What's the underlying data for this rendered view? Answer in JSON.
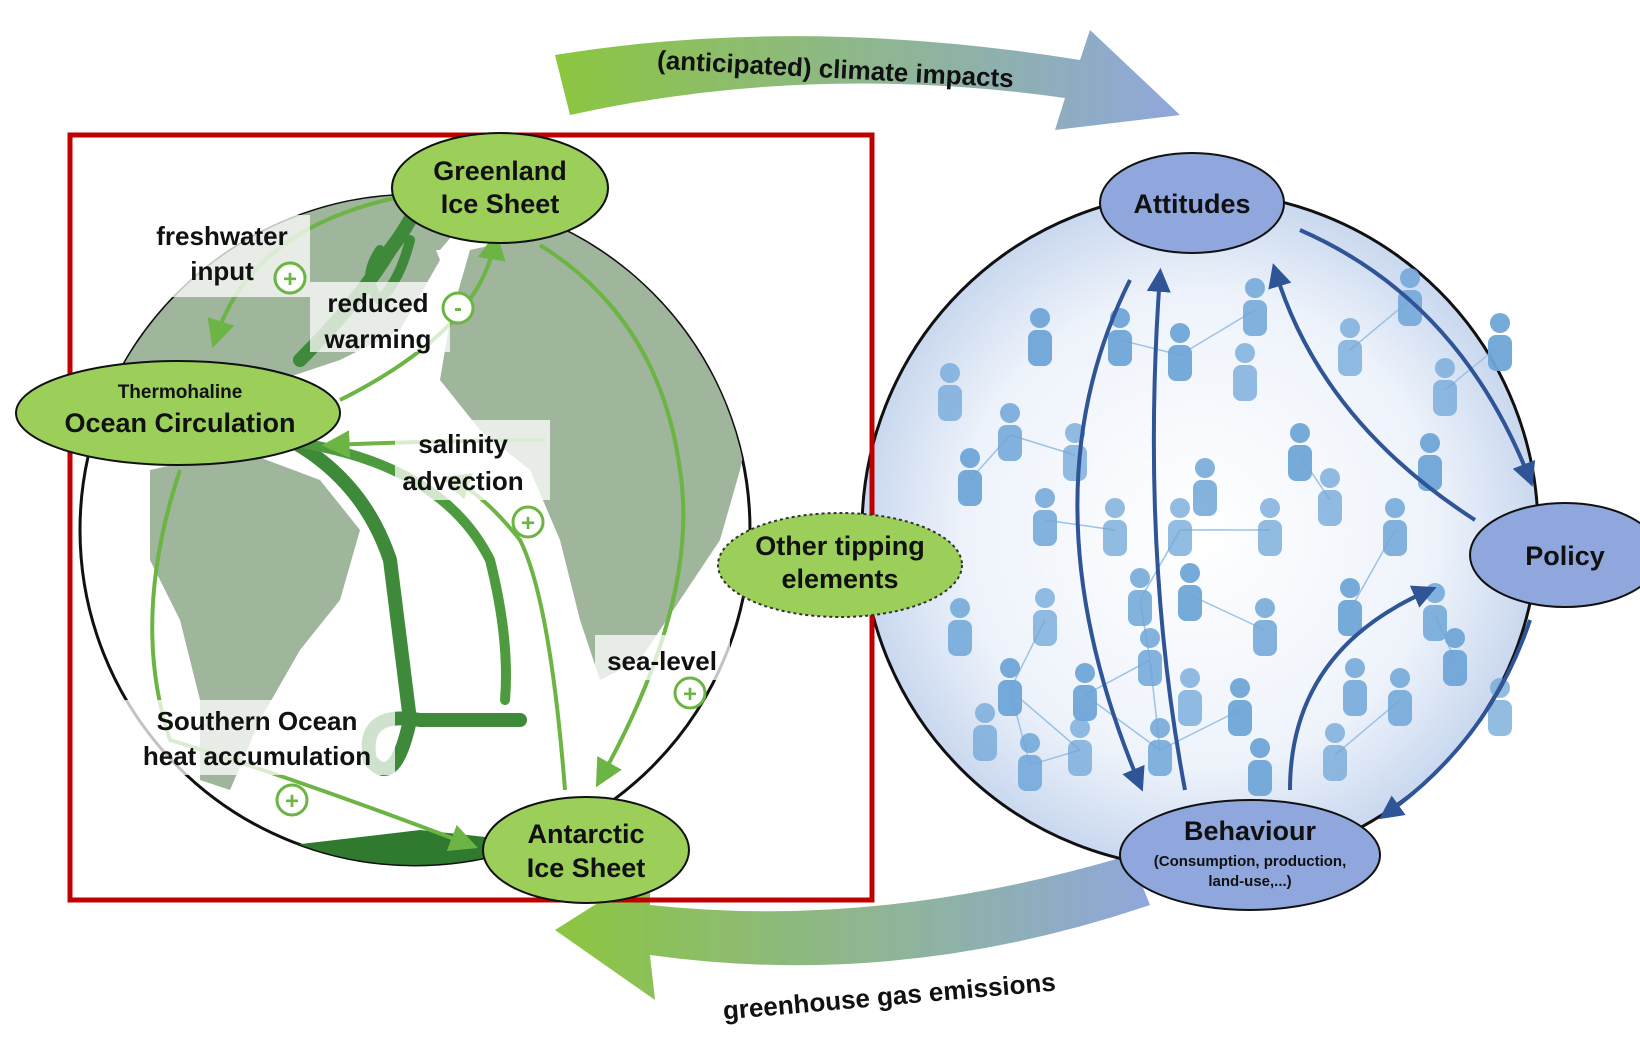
{
  "top_arrow_label": "(anticipated) climate impacts",
  "bottom_arrow_label": "greenhouse gas emissions",
  "climate_system": {
    "greenland": [
      "Greenland",
      "Ice Sheet"
    ],
    "thermohaline": [
      "Thermohaline",
      "Ocean Circulation"
    ],
    "antarctic": [
      "Antarctic",
      "Ice Sheet"
    ],
    "freshwater": [
      "freshwater",
      "input"
    ],
    "reduced_warming": [
      "reduced",
      "warming"
    ],
    "salinity": [
      "salinity",
      "advection"
    ],
    "sea_level": "sea-level",
    "southern_ocean": [
      "Southern Ocean",
      "heat accumulation"
    ],
    "plus_sign": "+",
    "minus_sign": "-"
  },
  "other_tipping": [
    "Other tipping",
    "elements"
  ],
  "social_system": {
    "attitudes": "Attitudes",
    "policy": "Policy",
    "behaviour": "Behaviour",
    "behaviour_sub": [
      "(Consumption, production,",
      "land-use,...)"
    ]
  },
  "colors": {
    "green_dark": "#3f8a3a",
    "green_mid": "#5fae46",
    "green_light": "#8cc63f",
    "node_green": "#9ccf5a",
    "node_blue": "#8fa7dc",
    "arrow_blue": "#2f5597",
    "person_blue": "#6fa6d8",
    "highlight_red": "#c00000"
  }
}
